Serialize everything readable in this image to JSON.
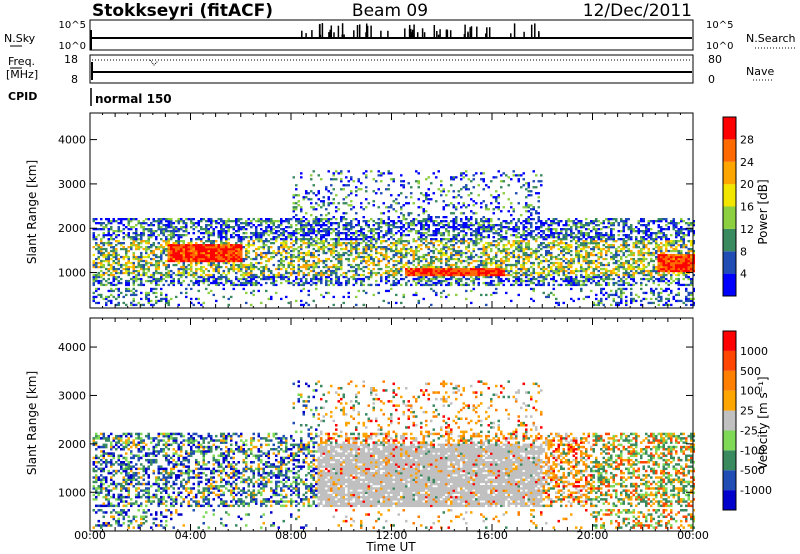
{
  "header": {
    "station": "Stokkseyri (fitACF)",
    "beam": "Beam 09",
    "date": "12/Dec/2011"
  },
  "strip": {
    "nsky_label": "N.Sky",
    "nsky_top": "10^5",
    "nsky_bottom": "10^0",
    "nsearch_label": "N.Search",
    "nsearch_top": "10^5",
    "nsearch_bottom": "10^0",
    "freq_label": "Freq.",
    "freq_unit": "[MHz]",
    "freq_top": "18",
    "freq_bottom": "8",
    "nave_label": "Nave",
    "nave_top": "80",
    "nave_bottom": "0",
    "cpid_label": "CPID",
    "cpid_value": "normal 150"
  },
  "colors": {
    "power": [
      "#0000ff",
      "#1f4db3",
      "#3a8a60",
      "#8ccf40",
      "#f2e600",
      "#ffa500",
      "#ff6a00",
      "#ff0000"
    ],
    "velocity": [
      "#0000cd",
      "#1f4db3",
      "#3a8a60",
      "#7ed957",
      "#c0c0c0",
      "#ffa500",
      "#ff7f00",
      "#ff4500",
      "#ff0000"
    ]
  },
  "chart_data": [
    {
      "type": "heatmap",
      "name": "power-panel",
      "xlabel": "",
      "ylabel": "Slant Range [km]",
      "xlim": [
        "00:00",
        "24:00"
      ],
      "ylim": [
        200,
        4600
      ],
      "x_tick_labels": [],
      "y_ticks": [
        1000,
        2000,
        3000,
        4000
      ],
      "colorbar": {
        "label": "Power [dB]",
        "ticks": [
          "4",
          "8",
          "12",
          "16",
          "20",
          "24",
          "28"
        ]
      },
      "dominant_echo_bands": [
        {
          "from": "03:00",
          "to": "06:00",
          "range_km": [
            1200,
            1600
          ],
          "level_db": 28
        },
        {
          "from": "12:30",
          "to": "16:30",
          "range_km": [
            900,
            1100
          ],
          "level_db": 28
        },
        {
          "from": "22:30",
          "to": "24:00",
          "range_km": [
            1000,
            1400
          ],
          "level_db": 26
        }
      ]
    },
    {
      "type": "heatmap",
      "name": "velocity-panel",
      "xlabel": "Time UT",
      "ylabel": "Slant Range [km]",
      "xlim": [
        "00:00",
        "24:00"
      ],
      "ylim": [
        200,
        4600
      ],
      "x_tick_labels": [
        "00:00",
        "04:00",
        "08:00",
        "12:00",
        "16:00",
        "20:00",
        "00:00"
      ],
      "y_ticks": [
        1000,
        2000,
        3000,
        4000
      ],
      "colorbar": {
        "label": "Velocity [m s⁻¹]",
        "ticks": [
          "1000",
          "500",
          "100",
          "25",
          "-25",
          "-100",
          "-500",
          "-1000"
        ]
      },
      "ground_scatter_band": {
        "from": "09:00",
        "to": "18:00",
        "range_km": [
          700,
          2000
        ],
        "velocity": "-25 to 25"
      }
    }
  ]
}
